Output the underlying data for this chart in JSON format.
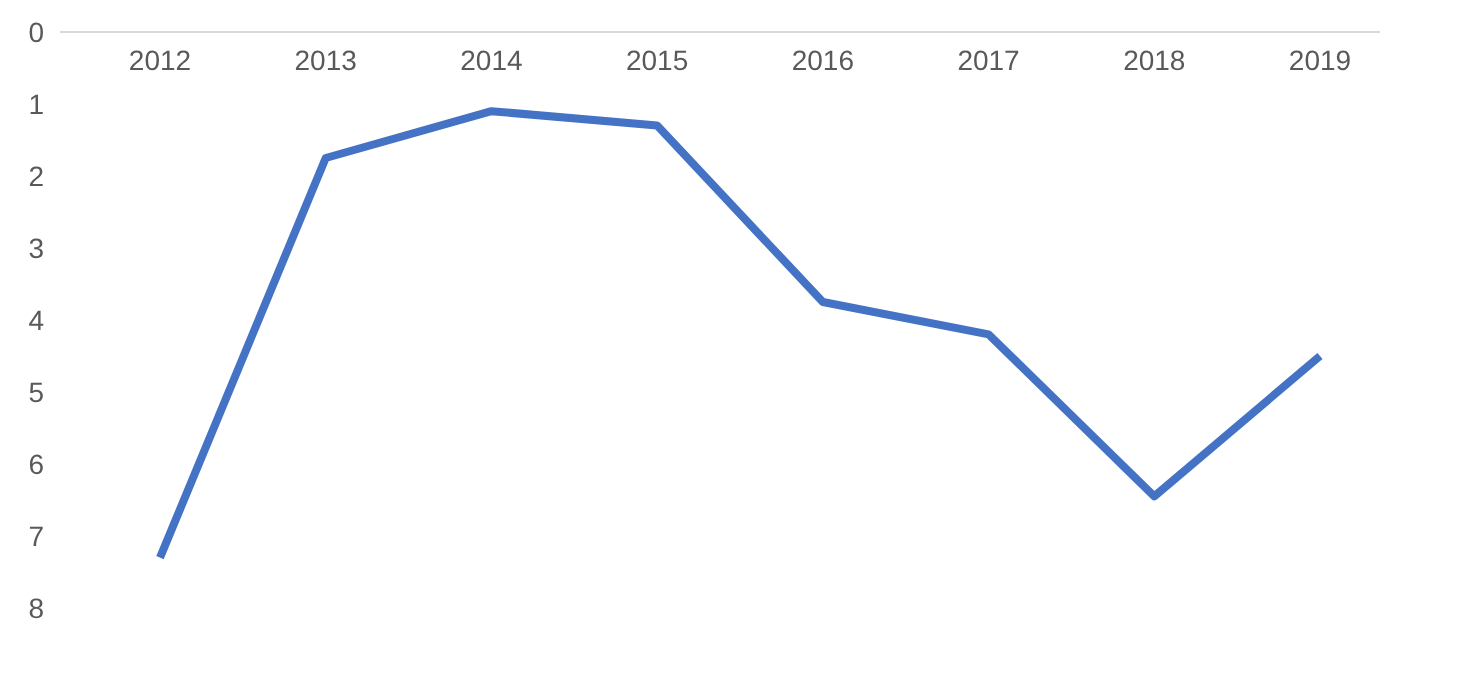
{
  "chart_data": {
    "type": "line",
    "categories": [
      "2012",
      "2013",
      "2014",
      "2015",
      "2016",
      "2017",
      "2018",
      "2019"
    ],
    "series": [
      {
        "color": "#4472c4",
        "values": [
          7.3,
          1.75,
          1.1,
          1.3,
          3.75,
          4.2,
          6.45,
          4.5
        ]
      }
    ],
    "ylim": [
      8,
      0
    ],
    "yticks": [
      0,
      1,
      2,
      3,
      4,
      5,
      6,
      7,
      8
    ],
    "grid": false,
    "legend": false,
    "marker": "none",
    "line_style": "solid"
  }
}
